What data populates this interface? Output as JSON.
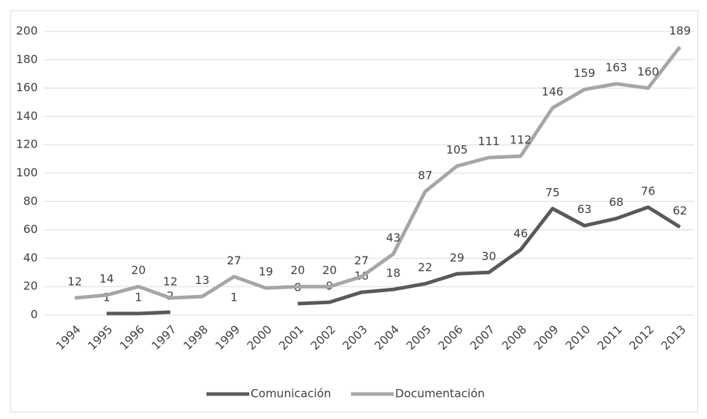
{
  "chart_data": {
    "type": "line",
    "x": [
      "1994",
      "1995",
      "1996",
      "1997",
      "1998",
      "1999",
      "2000",
      "2001",
      "2002",
      "2003",
      "2004",
      "2005",
      "2006",
      "2007",
      "2008",
      "2009",
      "2010",
      "2011",
      "2012",
      "2013"
    ],
    "series": [
      {
        "name": "Comunicación",
        "color": "#595959",
        "values": [
          null,
          1,
          1,
          2,
          null,
          1,
          null,
          8,
          9,
          16,
          18,
          22,
          29,
          30,
          46,
          75,
          63,
          68,
          76,
          62
        ]
      },
      {
        "name": "Documentación",
        "color": "#a6a6a6",
        "values": [
          12,
          14,
          20,
          12,
          13,
          27,
          19,
          20,
          20,
          27,
          43,
          87,
          105,
          111,
          112,
          146,
          159,
          163,
          160,
          189
        ]
      }
    ],
    "ylim": [
      0,
      200
    ],
    "yticks": [
      0,
      20,
      40,
      60,
      80,
      100,
      120,
      140,
      160,
      180,
      200
    ],
    "grid": true,
    "legend": "bottom"
  }
}
